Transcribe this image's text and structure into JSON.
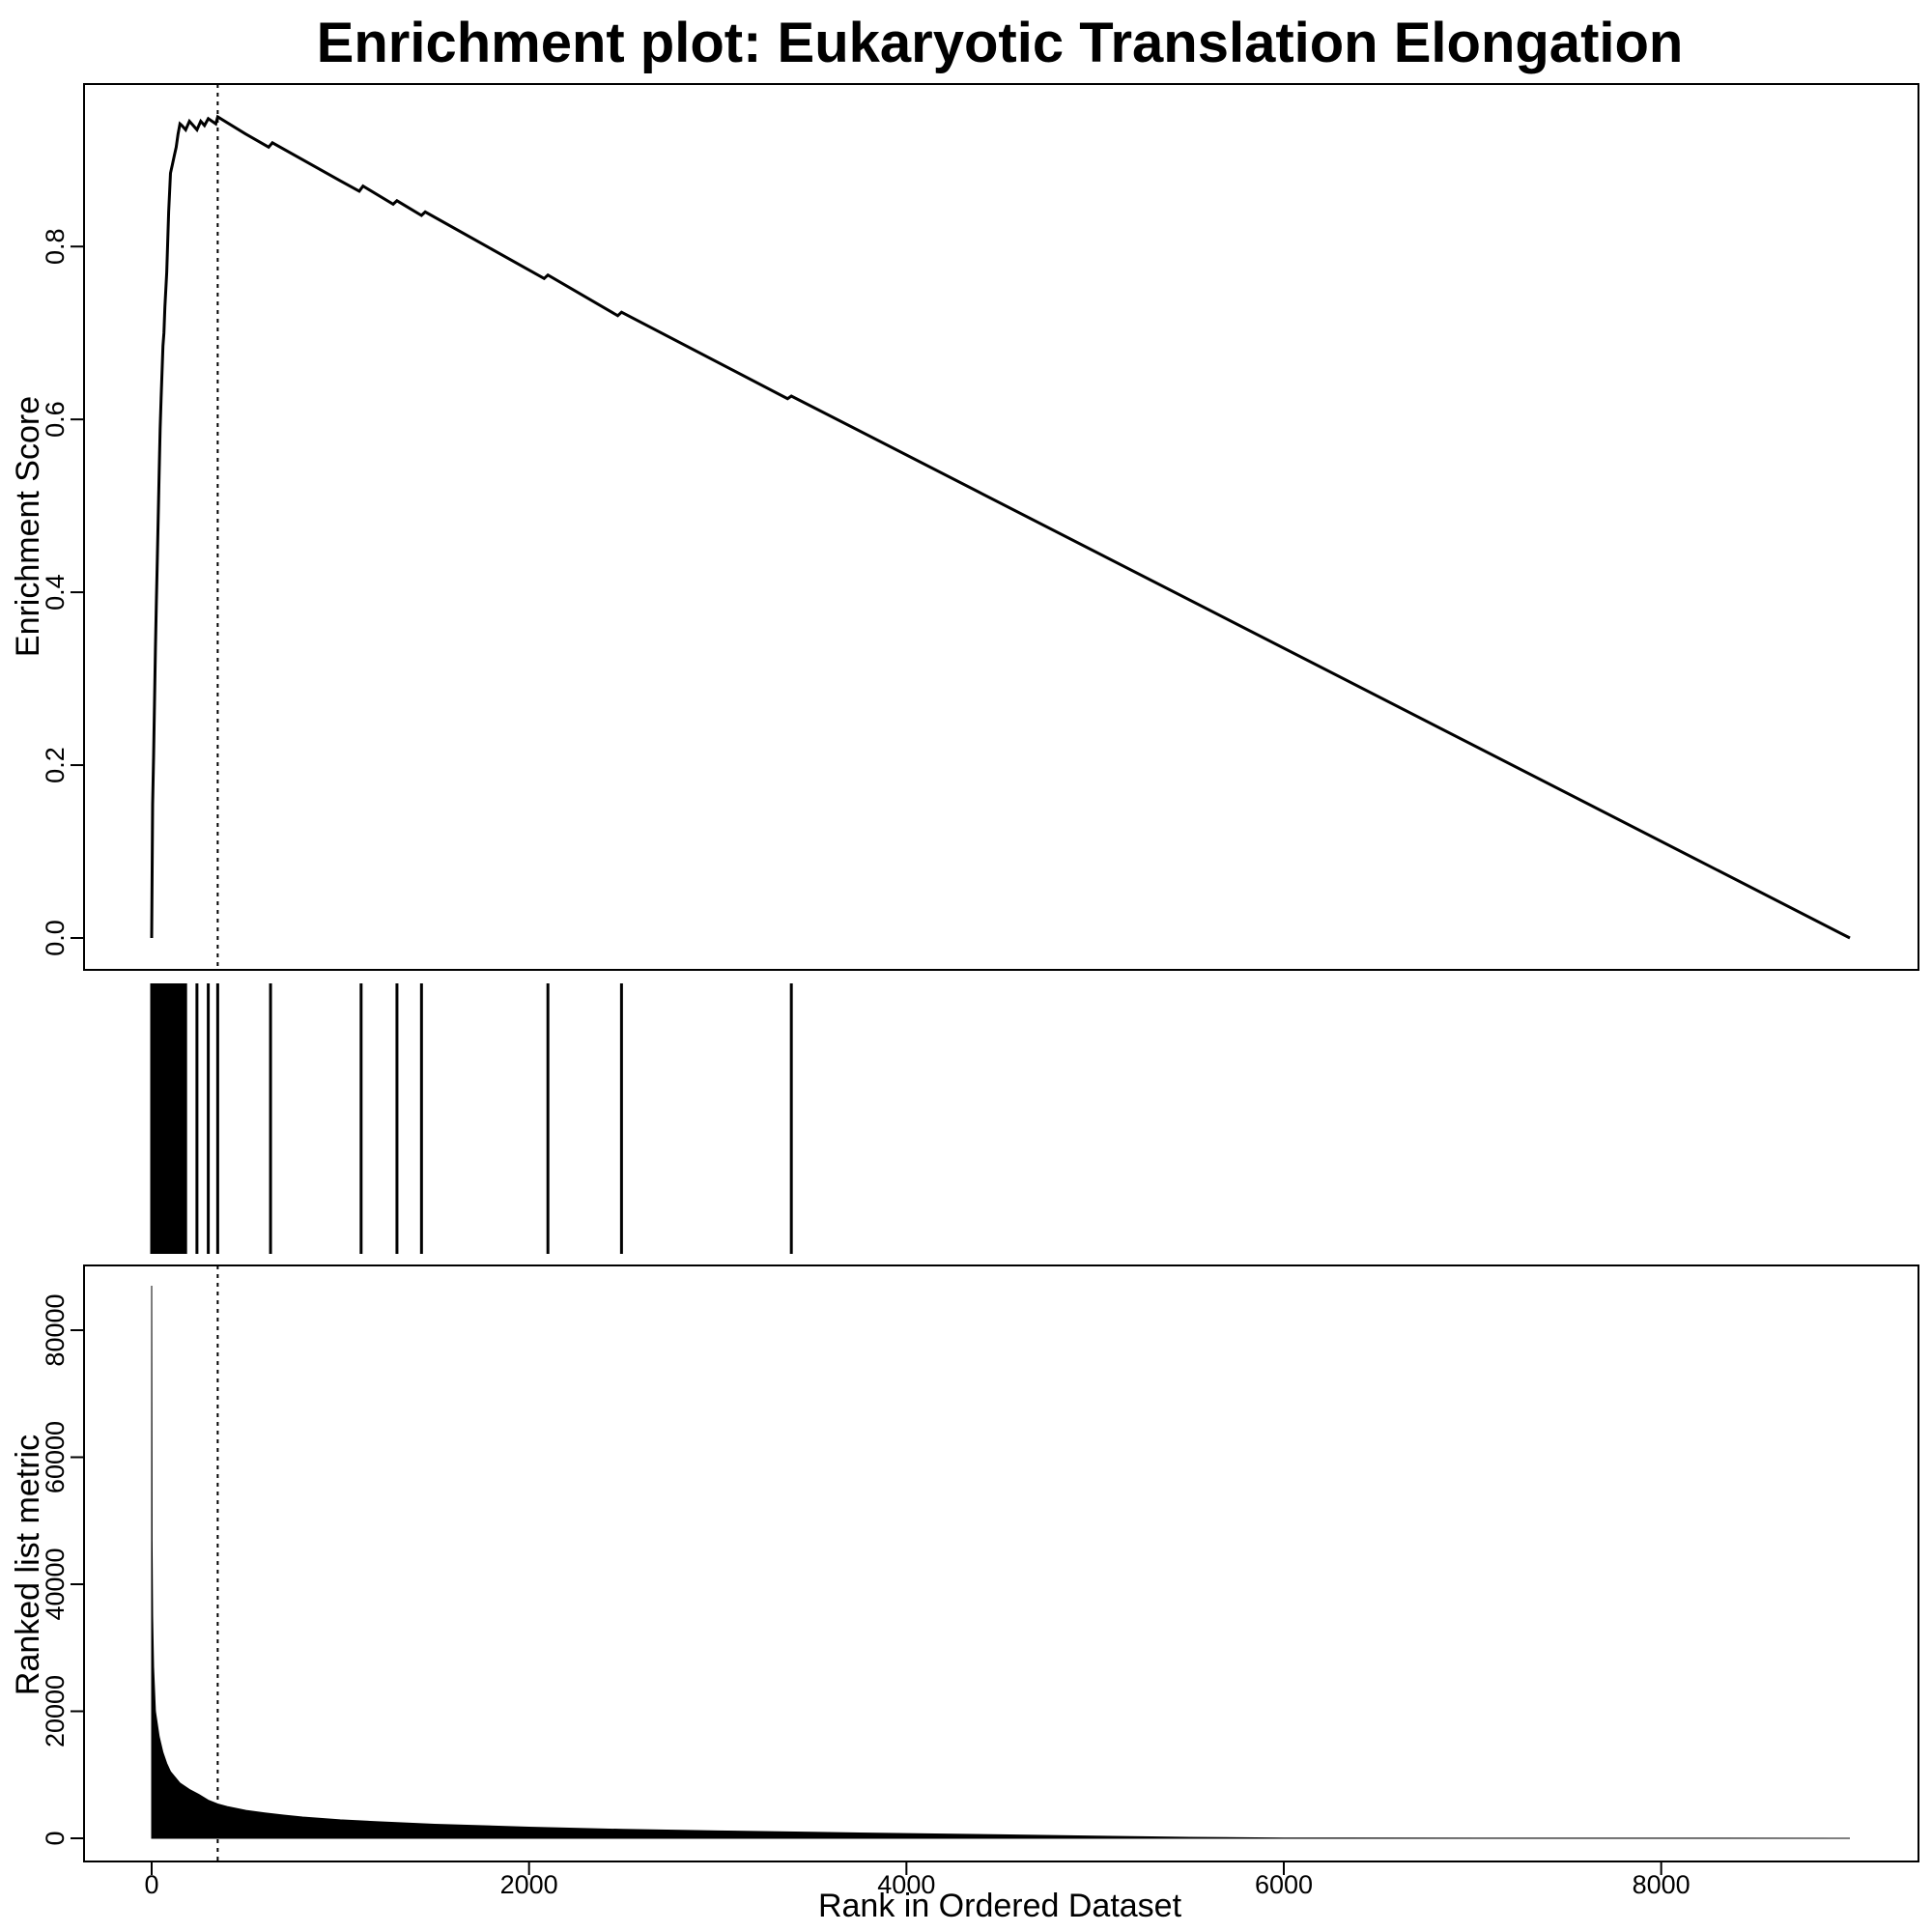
{
  "chart_data": [
    {
      "panel": "enrichment-score",
      "type": "line",
      "title": "Enrichment plot: Eukaryotic Translation Elongation",
      "ylabel": "Enrichment Score",
      "xlim": [
        0,
        9000
      ],
      "ylim": [
        0,
        0.95
      ],
      "yticks": [
        0.0,
        0.2,
        0.4,
        0.6,
        0.8
      ],
      "ytick_labels": [
        "0.0",
        "0.2",
        "0.4",
        "0.6",
        "0.8"
      ],
      "grid": false,
      "dashed_marker_x": 350,
      "x": [
        0,
        5,
        10,
        20,
        25,
        30,
        40,
        45,
        50,
        60,
        65,
        70,
        80,
        90,
        100,
        110,
        120,
        130,
        140,
        150,
        160,
        180,
        200,
        220,
        240,
        260,
        280,
        300,
        320,
        340,
        350,
        500,
        620,
        640,
        1000,
        1100,
        1120,
        1280,
        1300,
        1430,
        1450,
        2080,
        2100,
        2470,
        2490,
        3370,
        3390,
        9000
      ],
      "y": [
        0.0,
        0.155,
        0.21,
        0.335,
        0.39,
        0.44,
        0.54,
        0.59,
        0.625,
        0.685,
        0.7,
        0.73,
        0.77,
        0.84,
        0.885,
        0.895,
        0.905,
        0.915,
        0.93,
        0.942,
        0.94,
        0.935,
        0.945,
        0.94,
        0.935,
        0.945,
        0.94,
        0.948,
        0.945,
        0.942,
        0.95,
        0.93,
        0.915,
        0.92,
        0.876,
        0.864,
        0.87,
        0.849,
        0.853,
        0.836,
        0.84,
        0.763,
        0.767,
        0.72,
        0.724,
        0.624,
        0.627,
        0.0
      ]
    },
    {
      "panel": "gene-hits",
      "type": "bar",
      "hit_ranks": [
        0,
        4,
        8,
        12,
        16,
        20,
        24,
        28,
        32,
        36,
        40,
        44,
        48,
        52,
        56,
        60,
        64,
        68,
        72,
        76,
        80,
        84,
        88,
        92,
        96,
        100,
        104,
        108,
        112,
        116,
        120,
        124,
        128,
        132,
        136,
        140,
        150,
        160,
        170,
        180,
        240,
        300,
        350,
        630,
        1110,
        1300,
        1430,
        2100,
        2490,
        3390
      ]
    },
    {
      "panel": "ranked-list-metric",
      "type": "area",
      "xlabel": "Rank in Ordered Dataset",
      "ylabel": "Ranked list metric",
      "xlim": [
        0,
        9000
      ],
      "ylim": [
        0,
        87000
      ],
      "xticks": [
        0,
        2000,
        4000,
        6000,
        8000
      ],
      "xtick_labels": [
        "0",
        "2000",
        "4000",
        "6000",
        "8000"
      ],
      "yticks": [
        0,
        20000,
        40000,
        60000,
        80000
      ],
      "ytick_labels": [
        "0",
        "20000",
        "40000",
        "60000",
        "80000"
      ],
      "grid": false,
      "dashed_marker_x": 350,
      "x": [
        0,
        2,
        5,
        10,
        20,
        40,
        60,
        80,
        100,
        150,
        200,
        250,
        300,
        350,
        400,
        500,
        600,
        700,
        800,
        1000,
        1200,
        1500,
        2000,
        2500,
        3000,
        3500,
        4000,
        4500,
        5000,
        5500,
        6000,
        7000,
        8000,
        9000
      ],
      "y": [
        87000,
        47000,
        35000,
        27000,
        20000,
        16000,
        13500,
        11800,
        10500,
        8700,
        7700,
        6900,
        6000,
        5400,
        5000,
        4400,
        4000,
        3650,
        3350,
        2900,
        2600,
        2200,
        1750,
        1400,
        1150,
        950,
        750,
        550,
        350,
        150,
        50,
        20,
        10,
        0
      ]
    }
  ]
}
